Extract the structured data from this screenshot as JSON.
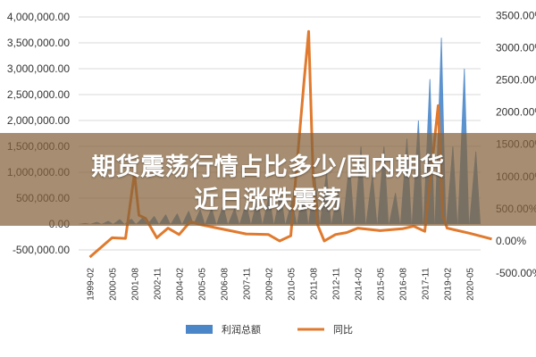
{
  "banner": {
    "line1": "期货震荡行情占比多少/国内期货",
    "line2": "近日涨跌震荡"
  },
  "colors": {
    "bars": "#4a86c8",
    "line": "#e07a2e",
    "grid": "#d9d9d9",
    "banner": "#85623c"
  },
  "chart_data": {
    "type": "bar+line",
    "title": "",
    "left_axis": {
      "ticks": [
        "4,000,000.00",
        "3,500,000.00",
        "3,000,000.00",
        "2,500,000.00",
        "2,000,000.00",
        "1,500,000.00",
        "1,000,000.00",
        "500,000.00",
        "0.00",
        "-500,000.00"
      ],
      "ylim": [
        -500000,
        4000000
      ]
    },
    "right_axis": {
      "ticks": [
        "3500.00%",
        "3000.00%",
        "2500.00%",
        "2000.00%",
        "1500.00%",
        "1000.00%",
        "500.00%",
        "0.00%",
        "-500.00%"
      ],
      "ylim": [
        -500,
        3500
      ]
    },
    "x_ticks": [
      "1999-02",
      "2000-05",
      "2001-08",
      "2002-11",
      "2004-02",
      "2005-05",
      "2006-08",
      "2007-11",
      "2009-02",
      "2010-05",
      "2011-08",
      "2012-11",
      "2014-02",
      "2015-05",
      "2016-08",
      "2017-11",
      "2019-02",
      "2020-05"
    ],
    "series": [
      {
        "name": "利润总额",
        "kind": "bar",
        "axis": "left",
        "values": [
          20000,
          40000,
          60000,
          90000,
          100000,
          120000,
          150000,
          180000,
          200000,
          250000,
          280000,
          300000,
          350000,
          300000,
          400000,
          500000,
          550000,
          600000,
          450000,
          700000,
          900000,
          1000000,
          650000,
          1200000,
          1500000,
          950000,
          1500000,
          600000,
          1650000,
          2000000,
          2800000,
          3600000,
          1500000,
          3000000,
          1400000
        ]
      },
      {
        "name": "同比",
        "kind": "line",
        "axis": "right",
        "points": [
          [
            0,
            -250
          ],
          [
            1,
            50
          ],
          [
            1.6,
            40
          ],
          [
            2,
            1050
          ],
          [
            2.2,
            400
          ],
          [
            2.5,
            350
          ],
          [
            3,
            50
          ],
          [
            3.5,
            200
          ],
          [
            4,
            100
          ],
          [
            4.5,
            300
          ],
          [
            5,
            250
          ],
          [
            6,
            180
          ],
          [
            7,
            110
          ],
          [
            8,
            100
          ],
          [
            8.5,
            0
          ],
          [
            9,
            80
          ],
          [
            9.6,
            2500
          ],
          [
            9.8,
            3250
          ],
          [
            10,
            1000
          ],
          [
            10.2,
            250
          ],
          [
            10.5,
            0
          ],
          [
            11,
            100
          ],
          [
            11.5,
            130
          ],
          [
            12,
            200
          ],
          [
            13,
            160
          ],
          [
            14,
            190
          ],
          [
            14.5,
            230
          ],
          [
            15,
            150
          ],
          [
            15.6,
            2100
          ],
          [
            15.8,
            400
          ],
          [
            16,
            200
          ],
          [
            17,
            120
          ],
          [
            18,
            30
          ]
        ]
      }
    ]
  }
}
